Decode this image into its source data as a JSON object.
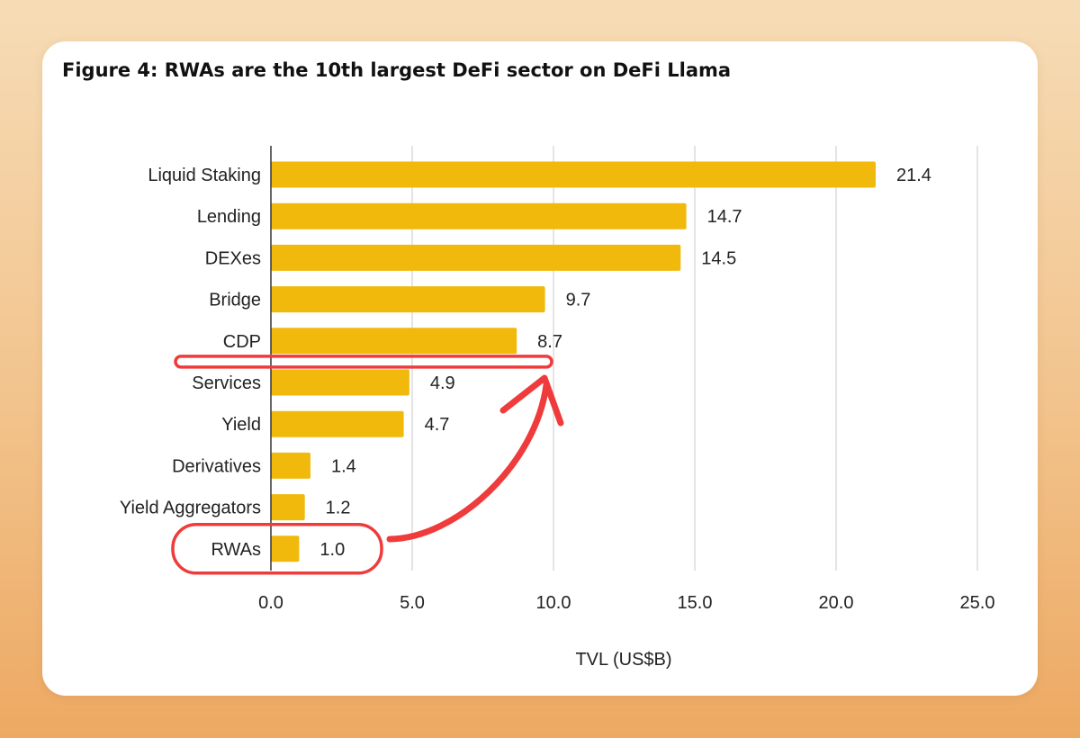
{
  "chart_data": {
    "type": "bar",
    "orientation": "horizontal",
    "title": "Figure 4: RWAs are the 10th largest DeFi sector on DeFi Llama",
    "xlabel": "TVL (US$B)",
    "ylabel": "",
    "categories": [
      "Liquid Staking",
      "Lending",
      "DEXes",
      "Bridge",
      "CDP",
      "Services",
      "Yield",
      "Derivatives",
      "Yield Aggregators",
      "RWAs"
    ],
    "values": [
      21.4,
      14.7,
      14.5,
      9.7,
      8.7,
      4.9,
      4.7,
      1.4,
      1.2,
      1.0
    ],
    "value_labels": [
      "21.4",
      "14.7",
      "14.5",
      "9.7",
      "8.7",
      "4.9",
      "4.7",
      "1.4",
      "1.2",
      "1.0"
    ],
    "xlim": [
      0,
      25
    ],
    "xticks": [
      0,
      5,
      10,
      15,
      20,
      25
    ],
    "xtick_labels": [
      "0.0",
      "5.0",
      "10.0",
      "15.0",
      "20.0",
      "25.0"
    ],
    "grid": "vertical",
    "legend": "none",
    "bar_color": "#f0b90b",
    "annotations": [
      {
        "type": "circle",
        "target_category": "RWAs",
        "color": "#ef3b3b"
      },
      {
        "type": "line-box",
        "between": [
          "CDP",
          "Services"
        ],
        "color": "#ef3b3b"
      },
      {
        "type": "arrow",
        "from": "RWAs",
        "to": "between CDP and Services",
        "color": "#ef3b3b"
      }
    ]
  }
}
